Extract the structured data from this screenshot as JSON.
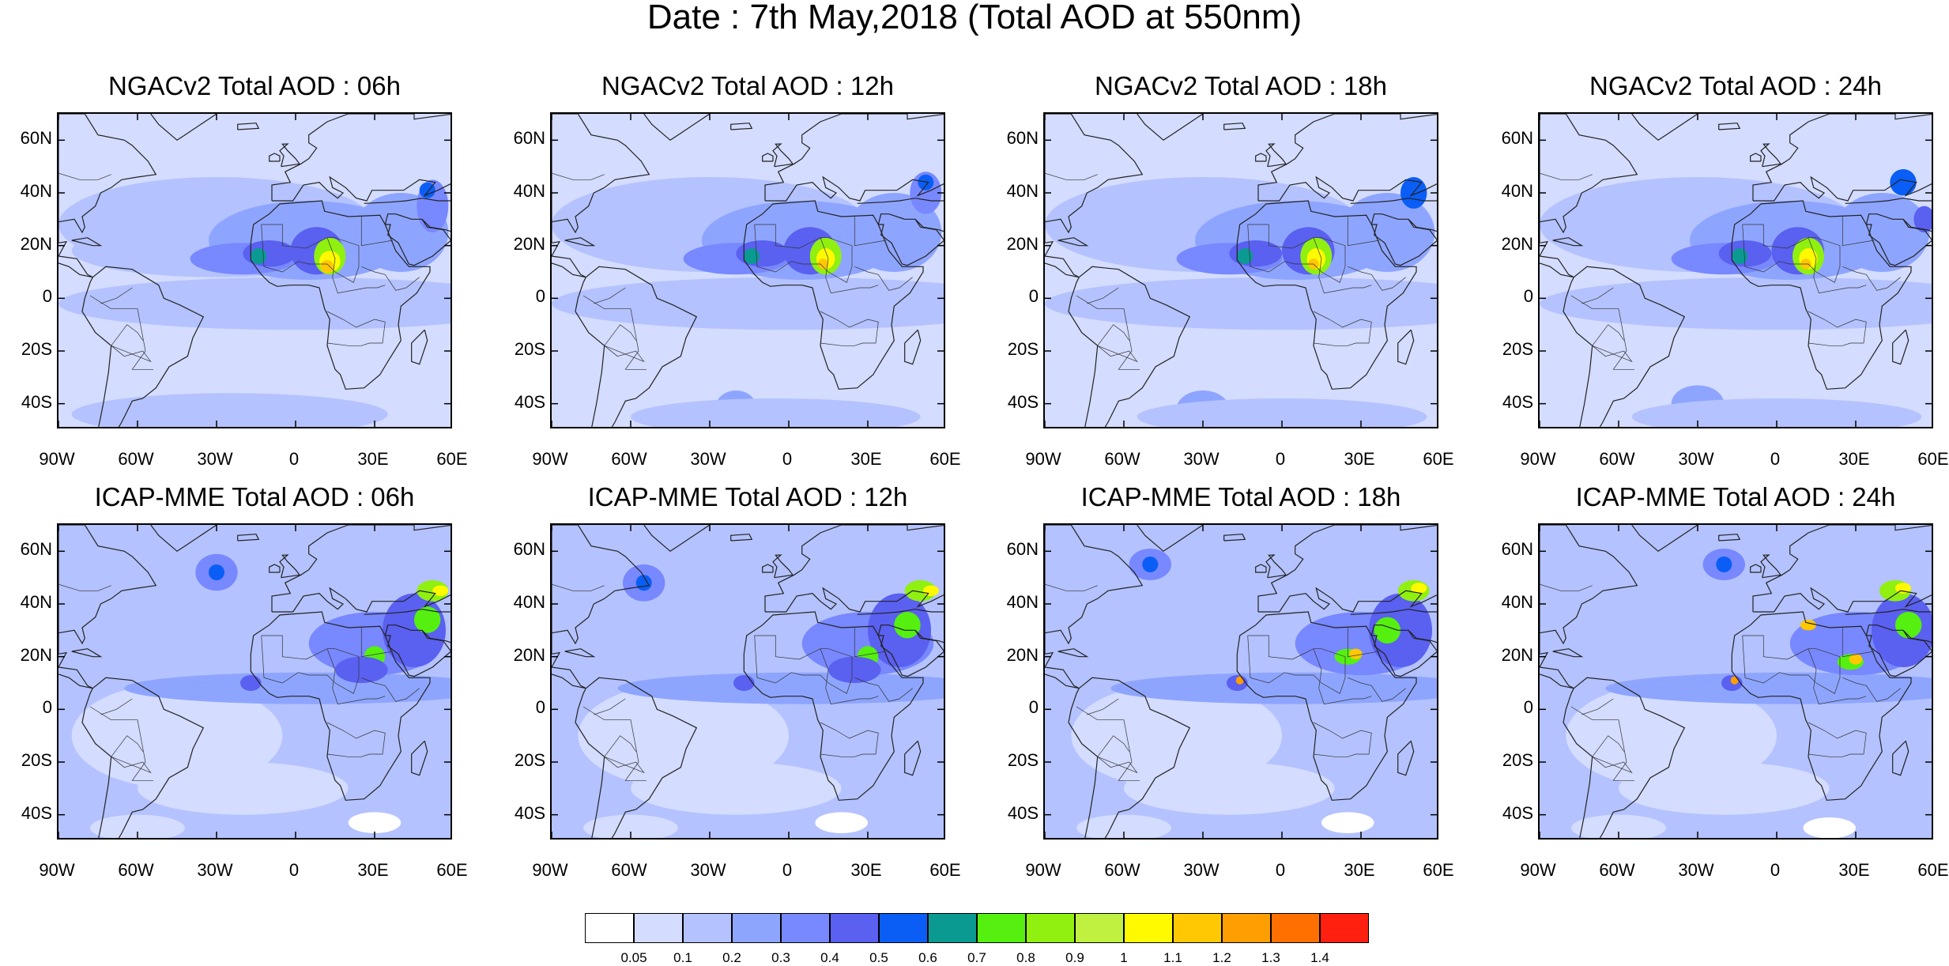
{
  "figure": {
    "title": "Date : 7th May,2018 (Total AOD at 550nm)"
  },
  "panels": [
    {
      "title": "NGACv2 Total AOD : 06h"
    },
    {
      "title": "NGACv2 Total AOD : 12h"
    },
    {
      "title": "NGACv2 Total AOD : 18h"
    },
    {
      "title": "NGACv2 Total AOD : 24h"
    },
    {
      "title": "ICAP-MME Total AOD : 06h"
    },
    {
      "title": "ICAP-MME Total AOD : 12h"
    },
    {
      "title": "ICAP-MME Total AOD : 18h"
    },
    {
      "title": "ICAP-MME Total AOD : 24h"
    }
  ],
  "axes": {
    "lat_ticks": [
      "60N",
      "40N",
      "20N",
      "0",
      "20S",
      "40S"
    ],
    "lon_ticks": [
      "90W",
      "60W",
      "30W",
      "0",
      "30E",
      "60E"
    ],
    "lat_range": [
      -50,
      70
    ],
    "lon_range": [
      -90,
      60
    ]
  },
  "colorbar": {
    "labels": [
      "0.05",
      "0.1",
      "0.2",
      "0.3",
      "0.4",
      "0.5",
      "0.6",
      "0.7",
      "0.8",
      "0.9",
      "1",
      "1.1",
      "1.2",
      "1.3",
      "1.4"
    ],
    "colors": [
      "#ffffff",
      "#d4dcff",
      "#b4c2ff",
      "#8ea5ff",
      "#7888ff",
      "#5a60f0",
      "#0a5ef5",
      "#0a9a92",
      "#55f010",
      "#90f010",
      "#c0f040",
      "#fffa00",
      "#ffc800",
      "#ff9e00",
      "#ff7000",
      "#ff2010"
    ]
  }
}
